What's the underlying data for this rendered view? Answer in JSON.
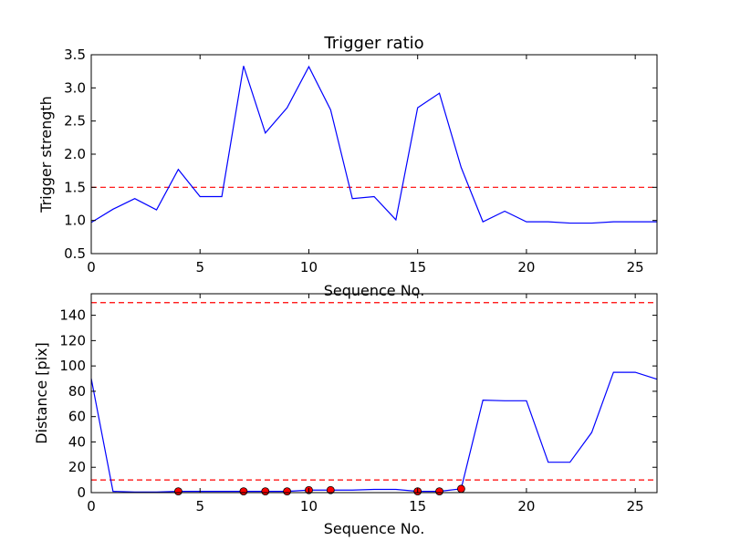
{
  "chart_data": [
    {
      "type": "line",
      "title": "Trigger ratio",
      "xlabel": "Sequence No.",
      "ylabel": "Trigger strength",
      "xlim": [
        0,
        26
      ],
      "ylim": [
        0.5,
        3.5
      ],
      "xticks": [
        "0",
        "5",
        "10",
        "15",
        "20",
        "25"
      ],
      "yticks": [
        "0.5",
        "1.0",
        "1.5",
        "2.0",
        "2.5",
        "3.0",
        "3.5"
      ],
      "grid": false,
      "series": [
        {
          "color": "#0000ff",
          "x": [
            0,
            1,
            2,
            3,
            4,
            5,
            6,
            7,
            8,
            9,
            10,
            11,
            12,
            13,
            14,
            15,
            16,
            17,
            18,
            19,
            20,
            21,
            22,
            23,
            24,
            25,
            26
          ],
          "y": [
            0.97,
            1.17,
            1.33,
            1.16,
            1.77,
            1.36,
            1.36,
            3.33,
            2.32,
            2.7,
            3.32,
            2.67,
            1.33,
            1.36,
            1.01,
            2.7,
            2.92,
            1.8,
            0.98,
            1.14,
            0.98,
            0.98,
            0.96,
            0.96,
            0.98,
            0.98,
            0.98
          ]
        }
      ],
      "hlines": [
        {
          "y": 1.5,
          "color": "#ff0000",
          "style": "dashed"
        }
      ]
    },
    {
      "type": "line",
      "title": "",
      "xlabel": "Sequence No.",
      "ylabel": "Distance [pix]",
      "xlim": [
        0,
        26
      ],
      "ylim": [
        0,
        157
      ],
      "xticks": [
        "0",
        "5",
        "10",
        "15",
        "20",
        "25"
      ],
      "yticks": [
        "0",
        "20",
        "40",
        "60",
        "80",
        "100",
        "120",
        "140"
      ],
      "grid": false,
      "series": [
        {
          "color": "#0000ff",
          "x": [
            0,
            1,
            2,
            3,
            4,
            5,
            6,
            7,
            8,
            9,
            10,
            11,
            12,
            13,
            14,
            15,
            16,
            17,
            18,
            19,
            20,
            21,
            22,
            23,
            24,
            25,
            26
          ],
          "y": [
            90,
            1,
            0.5,
            0.5,
            1,
            1,
            1,
            1,
            1,
            1,
            2,
            2,
            2,
            2.5,
            2.5,
            1,
            1,
            3,
            73,
            72.5,
            72.5,
            24,
            24,
            47.5,
            95,
            95,
            89.5
          ]
        }
      ],
      "markers": {
        "color": "#ff0000",
        "x": [
          4,
          7,
          8,
          9,
          10,
          11,
          15,
          16,
          17
        ],
        "y": [
          1,
          1,
          1,
          1,
          2,
          2,
          1,
          1,
          3
        ]
      },
      "hlines": [
        {
          "y": 150,
          "color": "#ff0000",
          "style": "dashed"
        },
        {
          "y": 10,
          "color": "#ff0000",
          "style": "dashed"
        }
      ]
    }
  ]
}
